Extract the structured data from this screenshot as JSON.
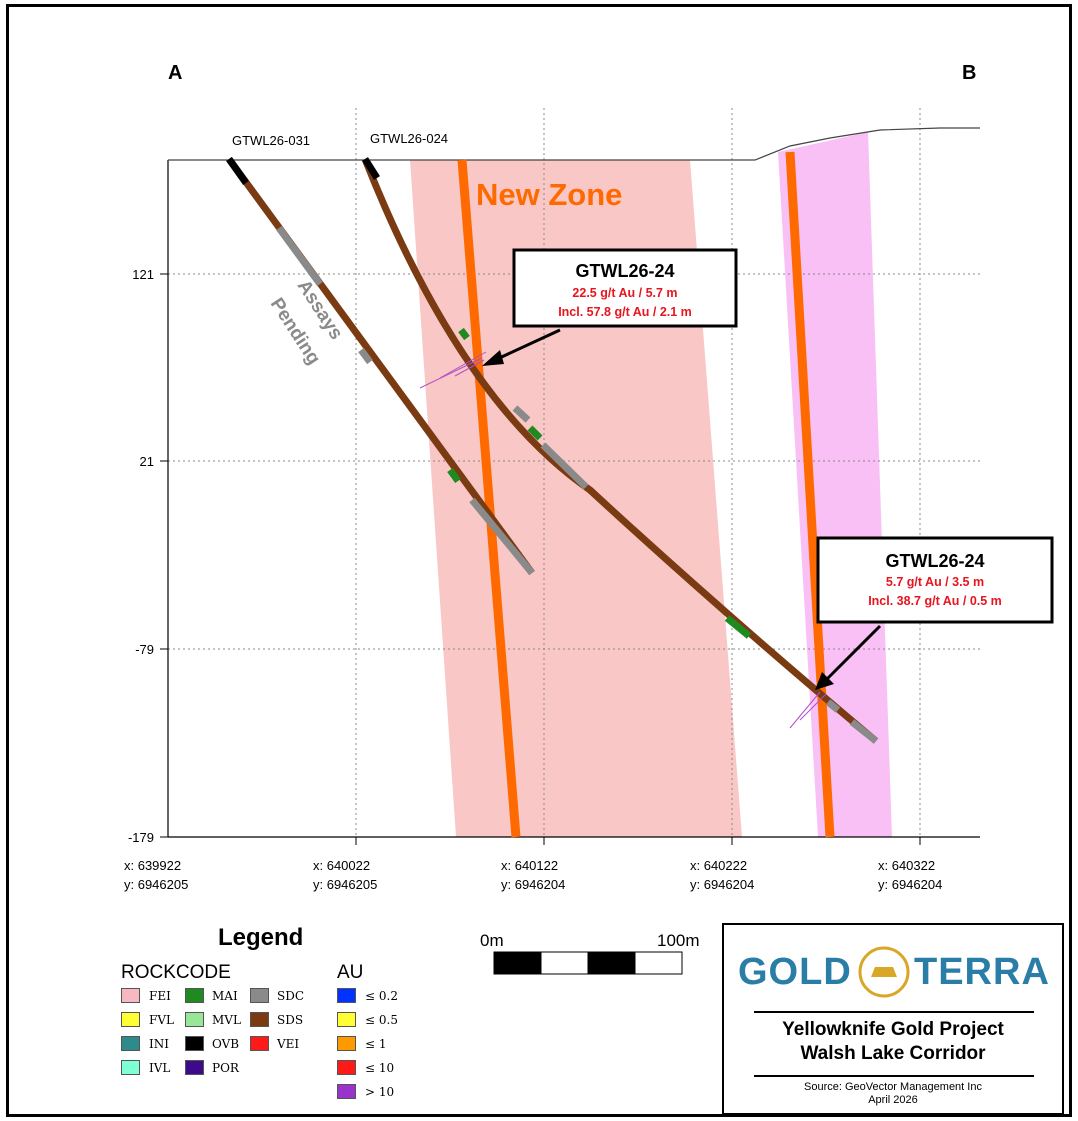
{
  "section": {
    "end_left": "A",
    "end_right": "B",
    "elevation_ticks": [
      "121",
      "21",
      "-79",
      "-179"
    ],
    "easting_ticks": [
      {
        "x": "x: 639922",
        "y": "y: 6946205"
      },
      {
        "x": "x: 640022",
        "y": "y: 6946205"
      },
      {
        "x": "x: 640122",
        "y": "y: 6946204"
      },
      {
        "x": "x: 640222",
        "y": "y: 6946204"
      },
      {
        "x": "x: 640322",
        "y": "y: 6946204"
      }
    ],
    "drillholes": [
      "GTWL26-031",
      "GTWL26-024"
    ],
    "zone_label": "New Zone",
    "assays_label_line1": "Assays",
    "assays_label_line2": "Pending",
    "callouts": [
      {
        "title": "GTWL26-24",
        "line1": "22.5 g/t Au / 5.7 m",
        "line2": "Incl. 57.8 g/t Au / 2.1 m"
      },
      {
        "title": "GTWL26-24",
        "line1": "5.7 g/t Au / 3.5 m",
        "line2": "Incl. 38.7 g/t Au / 0.5 m"
      }
    ]
  },
  "legend": {
    "title": "Legend",
    "rockcode_title": "ROCKCODE",
    "rockcodes": [
      {
        "code": "FEI",
        "color": "#f7b8c2"
      },
      {
        "code": "FVL",
        "color": "#ffff33"
      },
      {
        "code": "INI",
        "color": "#2e8b8b"
      },
      {
        "code": "IVL",
        "color": "#7fffd4"
      },
      {
        "code": "MAI",
        "color": "#1f8a1f"
      },
      {
        "code": "MVL",
        "color": "#98e698"
      },
      {
        "code": "OVB",
        "color": "#000000"
      },
      {
        "code": "POR",
        "color": "#3d0a8a"
      },
      {
        "code": "SDC",
        "color": "#8a8a8a"
      },
      {
        "code": "SDS",
        "color": "#7a3a12"
      },
      {
        "code": "VEI",
        "color": "#ff1a1a"
      }
    ],
    "au_title": "AU",
    "au_classes": [
      {
        "label": "≤ 0.2",
        "color": "#0033ff"
      },
      {
        "label": "≤ 0.5",
        "color": "#ffff33"
      },
      {
        "label": "≤ 1",
        "color": "#ff9900"
      },
      {
        "label": "≤ 10",
        "color": "#ff1a1a"
      },
      {
        "label": "> 10",
        "color": "#9933cc"
      }
    ]
  },
  "scale_bar": {
    "start": "0m",
    "end": "100m"
  },
  "logo": {
    "word1": "GOLD",
    "word2": "TERRA",
    "project_line1": "Yellowknife Gold Project",
    "project_line2": "Walsh Lake Corridor",
    "source_line1": "Source: GeoVector Management Inc",
    "source_line2": "April 2026"
  },
  "colors": {
    "zone_fill": "#f9c7c6",
    "zone2_fill": "#f8c0f5",
    "vein": "#ff6a00",
    "callout_red": "#e8141e",
    "logo_blue": "#2a7da6",
    "logo_gold": "#d9a626"
  }
}
